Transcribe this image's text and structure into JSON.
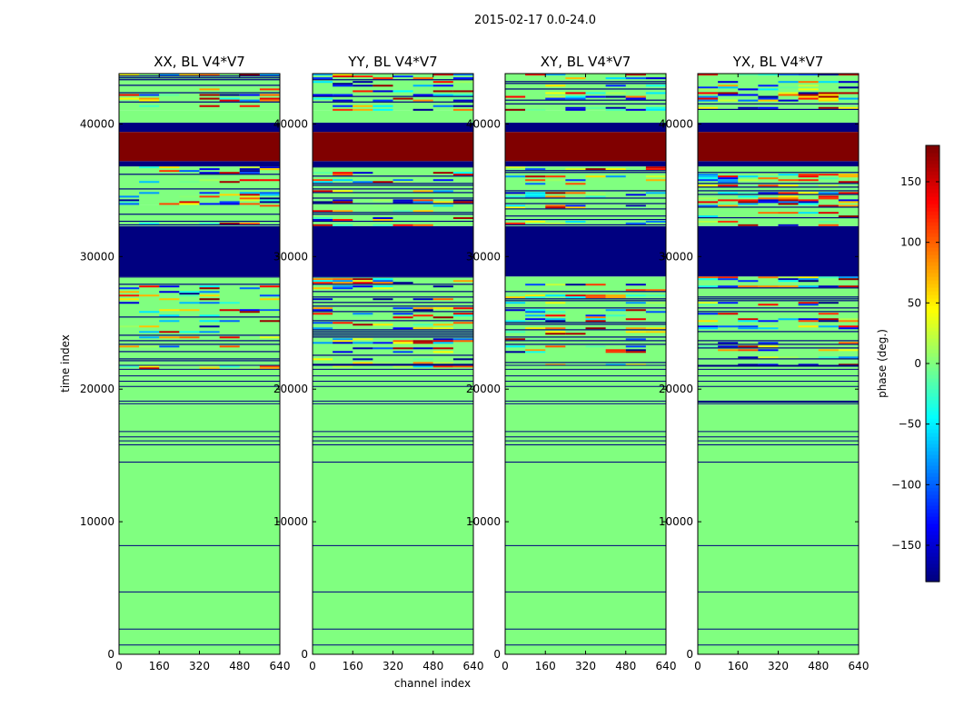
{
  "chart_data": {
    "type": "heatmap",
    "title": "2015-02-17 0.0-24.0",
    "xlabel": "channel index",
    "ylabel": "time index",
    "xlim": [
      0,
      640
    ],
    "ylim": [
      0,
      43800
    ],
    "x_ticks": [
      0,
      160,
      320,
      480,
      640
    ],
    "y_ticks": [
      0,
      10000,
      20000,
      30000,
      40000
    ],
    "panels": [
      {
        "title": "XX, BL V4*V7",
        "key": "XX"
      },
      {
        "title": "YY, BL V4*V7",
        "key": "YY"
      },
      {
        "title": "XY, BL V4*V7",
        "key": "XY"
      },
      {
        "title": "YX, BL V4*V7",
        "key": "YX"
      }
    ],
    "colorbar": {
      "label": "phase (deg.)",
      "range": [
        -180,
        180
      ],
      "ticks": [
        -150,
        -100,
        -50,
        0,
        50,
        100,
        150
      ],
      "colormap": "jet"
    },
    "bands": [
      {
        "t0": 0,
        "t1": 14500,
        "phase": 0,
        "panels": "all"
      },
      {
        "t0": 14500,
        "t1": 18800,
        "phase": 0,
        "panels": "all"
      },
      {
        "t0": 18800,
        "t1": 19200,
        "phase": "noisy-sparse",
        "panels": "all"
      },
      {
        "t0": 19200,
        "t1": 21500,
        "phase": 0,
        "panels": "all"
      },
      {
        "t0": 21500,
        "t1": 28500,
        "phase": "noisy",
        "panels": "all"
      },
      {
        "t0": 28500,
        "t1": 32300,
        "phase": -180,
        "panels": "all"
      },
      {
        "t0": 32300,
        "t1": 33900,
        "phase": "mixed",
        "panels": "all"
      },
      {
        "t0": 33900,
        "t1": 36800,
        "phase": "noisy",
        "panels": "all"
      },
      {
        "t0": 36800,
        "t1": 37200,
        "phase": -180,
        "panels": "all"
      },
      {
        "t0": 37200,
        "t1": 39400,
        "phase": 180,
        "panels": "all"
      },
      {
        "t0": 39400,
        "t1": 40100,
        "phase": -180,
        "panels": "all"
      },
      {
        "t0": 40100,
        "t1": 41000,
        "phase": 0,
        "panels": "all"
      },
      {
        "t0": 41000,
        "t1": 43800,
        "phase": "noisy",
        "panels": "all"
      }
    ]
  }
}
